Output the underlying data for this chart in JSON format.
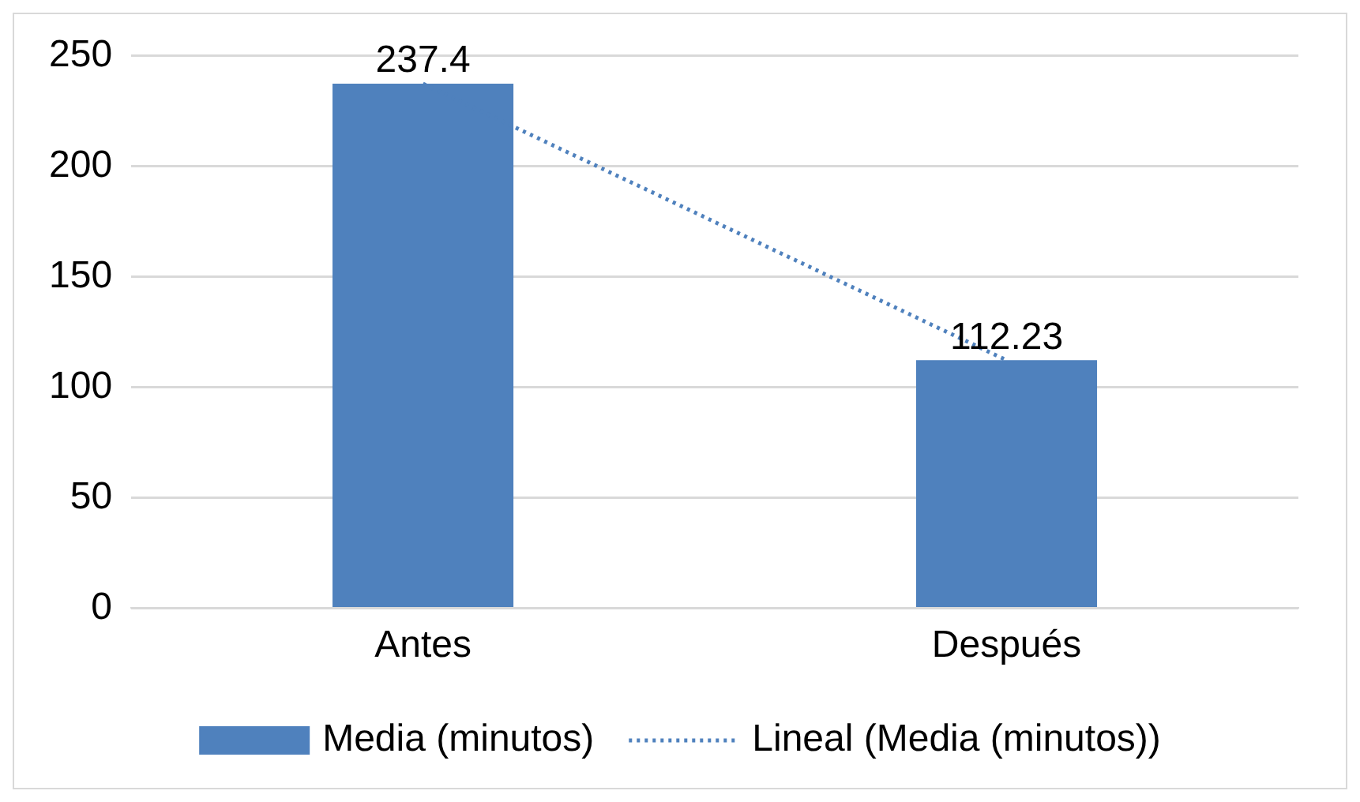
{
  "chart_data": {
    "type": "bar",
    "categories": [
      "Antes",
      "Después"
    ],
    "series": [
      {
        "name": "Media (minutos)",
        "color": "#4f81bd",
        "values": [
          237.4,
          112.23
        ],
        "value_labels": [
          "237.4",
          "112.23"
        ]
      },
      {
        "name": "Lineal (Media (minutos))",
        "type": "line",
        "line_style": "dotted",
        "marker": "none",
        "color": "#4f81bd",
        "values": [
          237.4,
          112.23
        ]
      }
    ],
    "ylim": [
      0,
      250
    ],
    "yticks": [
      0,
      50,
      100,
      150,
      200,
      250
    ],
    "grid": "y",
    "legend": "bottom"
  }
}
